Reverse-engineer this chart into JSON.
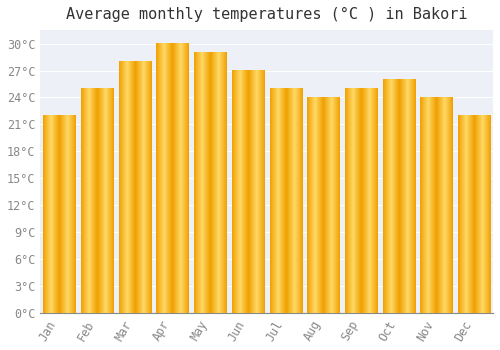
{
  "title": "Average monthly temperatures (°C ) in Bakori",
  "months": [
    "Jan",
    "Feb",
    "Mar",
    "Apr",
    "May",
    "Jun",
    "Jul",
    "Aug",
    "Sep",
    "Oct",
    "Nov",
    "Dec"
  ],
  "values": [
    22,
    25,
    28,
    30,
    29,
    27,
    25,
    24,
    25,
    26,
    24,
    22
  ],
  "bar_color_center": "#FFD966",
  "bar_color_edge": "#F0A000",
  "background_color": "#FFFFFF",
  "plot_bg_color": "#EEF0F8",
  "grid_color": "#FFFFFF",
  "ytick_labels": [
    "0°C",
    "3°C",
    "6°C",
    "9°C",
    "12°C",
    "15°C",
    "18°C",
    "21°C",
    "24°C",
    "27°C",
    "30°C"
  ],
  "ytick_values": [
    0,
    3,
    6,
    9,
    12,
    15,
    18,
    21,
    24,
    27,
    30
  ],
  "ylim": [
    0,
    31.5
  ],
  "title_fontsize": 11,
  "tick_fontsize": 8.5,
  "tick_color": "#888888",
  "font_family": "monospace",
  "bar_width": 0.85
}
